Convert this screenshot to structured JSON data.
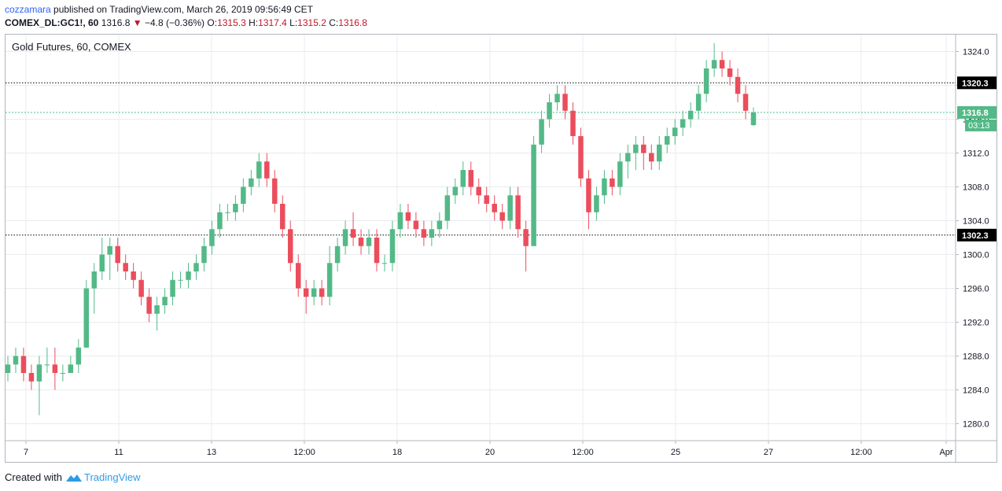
{
  "header": {
    "author": "cozzamara",
    "published_text": "published on TradingView.com, March 26, 2019 09:56:49 CET",
    "symbol": "COMEX_DL:GC1!, 60",
    "last": "1316.8",
    "change_icon": "down-triangle-icon",
    "change": "−4.8 (−0.36%)",
    "o_label": "O:",
    "o": "1315.3",
    "h_label": "H:",
    "h": "1317.4",
    "l_label": "L:",
    "l": "1315.2",
    "c_label": "C:",
    "c": "1316.8"
  },
  "footer": {
    "created_with": "Created with",
    "brand": "TradingView",
    "logo_icon": "tradingview-logo-icon"
  },
  "colors": {
    "up": "#53b987",
    "down": "#eb4d5c",
    "grid": "#e9ebef",
    "last_line": "#4fbf8f",
    "level": "#000000",
    "text": "#131722"
  },
  "chart_data": {
    "type": "candlestick",
    "title": "Gold Futures, 60, COMEX",
    "ylim": [
      1278,
      1326
    ],
    "y_ticks": [
      1280.0,
      1284.0,
      1288.0,
      1292.0,
      1296.0,
      1300.0,
      1304.0,
      1308.0,
      1312.0,
      1316.0,
      1320.0,
      1324.0
    ],
    "x_ticks": [
      "7",
      "11",
      "13",
      "12:00",
      "18",
      "20",
      "12:00",
      "25",
      "27",
      "12:00",
      "Apr"
    ],
    "horizontal_levels": [
      {
        "label": "1320.3",
        "value": 1320.3
      },
      {
        "label": "1302.3",
        "value": 1302.3
      }
    ],
    "last_price": {
      "label": "1316.8",
      "value": 1316.8,
      "countdown": "03:13"
    },
    "series": [
      {
        "values": [
          [
            1286,
            1288,
            1285,
            1287
          ],
          [
            1287,
            1289,
            1286,
            1288
          ],
          [
            1288,
            1289,
            1285,
            1286
          ],
          [
            1286,
            1287,
            1284,
            1285
          ],
          [
            1285,
            1288,
            1281,
            1287
          ],
          [
            1287,
            1289,
            1286,
            1287
          ],
          [
            1287,
            1289,
            1284,
            1286
          ],
          [
            1286,
            1287,
            1285,
            1286
          ],
          [
            1286,
            1288,
            1286,
            1287
          ],
          [
            1287,
            1290,
            1286,
            1289
          ],
          [
            1289,
            1297,
            1289,
            1296
          ],
          [
            1296,
            1299,
            1293,
            1298
          ],
          [
            1298,
            1302,
            1297,
            1300
          ],
          [
            1300,
            1302,
            1297,
            1301
          ],
          [
            1301,
            1302,
            1298,
            1299
          ],
          [
            1299,
            1300,
            1297,
            1298
          ],
          [
            1298,
            1299,
            1296,
            1297
          ],
          [
            1297,
            1298,
            1294,
            1295
          ],
          [
            1295,
            1296,
            1292,
            1293
          ],
          [
            1293,
            1295,
            1291,
            1294
          ],
          [
            1294,
            1296,
            1293,
            1295
          ],
          [
            1295,
            1298,
            1294,
            1297
          ],
          [
            1297,
            1298,
            1296,
            1297
          ],
          [
            1297,
            1299,
            1296,
            1298
          ],
          [
            1298,
            1300,
            1297,
            1299
          ],
          [
            1299,
            1302,
            1298,
            1301
          ],
          [
            1301,
            1304,
            1300,
            1303
          ],
          [
            1303,
            1306,
            1302,
            1305
          ],
          [
            1305,
            1306,
            1304,
            1305
          ],
          [
            1305,
            1307,
            1304,
            1306
          ],
          [
            1306,
            1309,
            1305,
            1308
          ],
          [
            1308,
            1310,
            1307,
            1309
          ],
          [
            1309,
            1312,
            1308,
            1311
          ],
          [
            1311,
            1312,
            1308,
            1309
          ],
          [
            1309,
            1310,
            1305,
            1306
          ],
          [
            1306,
            1307,
            1302,
            1303
          ],
          [
            1303,
            1304,
            1298,
            1299
          ],
          [
            1299,
            1300,
            1295,
            1296
          ],
          [
            1296,
            1297,
            1293,
            1295
          ],
          [
            1295,
            1297,
            1294,
            1296
          ],
          [
            1296,
            1297,
            1294,
            1295
          ],
          [
            1295,
            1301,
            1294,
            1299
          ],
          [
            1299,
            1302,
            1298,
            1301
          ],
          [
            1301,
            1304,
            1300,
            1303
          ],
          [
            1303,
            1305,
            1301,
            1302
          ],
          [
            1302,
            1303,
            1300,
            1301
          ],
          [
            1301,
            1303,
            1300,
            1302
          ],
          [
            1302,
            1303,
            1298,
            1299
          ],
          [
            1299,
            1300,
            1298,
            1299
          ],
          [
            1299,
            1304,
            1298,
            1303
          ],
          [
            1303,
            1306,
            1302,
            1305
          ],
          [
            1305,
            1306,
            1303,
            1304
          ],
          [
            1304,
            1305,
            1302,
            1303
          ],
          [
            1303,
            1304,
            1301,
            1302
          ],
          [
            1302,
            1304,
            1301,
            1303
          ],
          [
            1303,
            1305,
            1302,
            1304
          ],
          [
            1304,
            1308,
            1303,
            1307
          ],
          [
            1307,
            1309,
            1306,
            1308
          ],
          [
            1308,
            1311,
            1307,
            1310
          ],
          [
            1310,
            1311,
            1307,
            1308
          ],
          [
            1308,
            1309,
            1306,
            1307
          ],
          [
            1307,
            1308,
            1305,
            1306
          ],
          [
            1306,
            1307,
            1304,
            1305
          ],
          [
            1305,
            1306,
            1303,
            1304
          ],
          [
            1304,
            1308,
            1303,
            1307
          ],
          [
            1307,
            1308,
            1302,
            1303
          ],
          [
            1303,
            1304,
            1298,
            1301
          ],
          [
            1301,
            1314,
            1301,
            1313
          ],
          [
            1313,
            1317,
            1312,
            1316
          ],
          [
            1316,
            1319,
            1315,
            1318
          ],
          [
            1318,
            1320,
            1317,
            1319
          ],
          [
            1319,
            1320,
            1316,
            1317
          ],
          [
            1317,
            1318,
            1313,
            1314
          ],
          [
            1314,
            1315,
            1308,
            1309
          ],
          [
            1309,
            1310,
            1303,
            1305
          ],
          [
            1305,
            1308,
            1304,
            1307
          ],
          [
            1307,
            1310,
            1306,
            1309
          ],
          [
            1309,
            1310,
            1307,
            1308
          ],
          [
            1308,
            1312,
            1307,
            1311
          ],
          [
            1311,
            1313,
            1309,
            1312
          ],
          [
            1312,
            1314,
            1310,
            1313
          ],
          [
            1313,
            1314,
            1310,
            1312
          ],
          [
            1312,
            1313,
            1310,
            1311
          ],
          [
            1311,
            1314,
            1310,
            1313
          ],
          [
            1313,
            1315,
            1312,
            1314
          ],
          [
            1314,
            1316,
            1313,
            1315
          ],
          [
            1315,
            1317,
            1314,
            1316
          ],
          [
            1316,
            1318,
            1315,
            1317
          ],
          [
            1317,
            1320,
            1316,
            1319
          ],
          [
            1319,
            1323,
            1318,
            1322
          ],
          [
            1322,
            1325,
            1321,
            1323
          ],
          [
            1323,
            1324,
            1321,
            1322
          ],
          [
            1322,
            1323,
            1320,
            1321
          ],
          [
            1321,
            1322,
            1318,
            1319
          ],
          [
            1319,
            1320,
            1316,
            1317
          ],
          [
            1315.3,
            1317.4,
            1315.2,
            1316.8
          ]
        ]
      }
    ]
  }
}
